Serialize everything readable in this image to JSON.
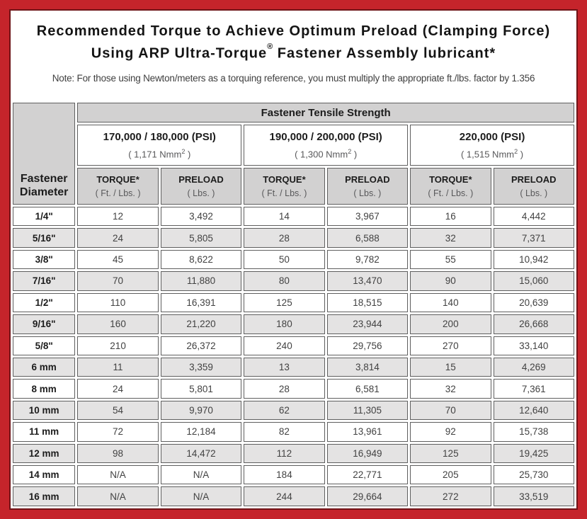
{
  "title": {
    "line1": "Recommended Torque to Achieve Optimum Preload (Clamping Force)",
    "line2_pre": "Using ARP Ultra-Torque",
    "line2_reg": "®",
    "line2_post": " Fastener Assembly lubricant*",
    "note": "Note: For those using Newton/meters as a torquing reference, you must multiply the appropriate ft./lbs. factor by 1.356"
  },
  "colors": {
    "frame_red": "#c5242b",
    "frame_inner_line": "#701418",
    "header_gray": "#d2d1d1",
    "alt_row_gray": "#e4e3e3",
    "cell_border": "#5f5f5f"
  },
  "table": {
    "corner_line1": "Fastener",
    "corner_line2": "Diameter",
    "top_header": "Fastener Tensile Strength",
    "groups": [
      {
        "psi": "170,000 / 180,000 (PSI)",
        "nmm_pre": "( 1,171 Nmm",
        "nmm_sup": "2",
        "nmm_post": " )"
      },
      {
        "psi": "190,000 / 200,000 (PSI)",
        "nmm_pre": "( 1,300 Nmm",
        "nmm_sup": "2",
        "nmm_post": " )"
      },
      {
        "psi": "220,000 (PSI)",
        "nmm_pre": "( 1,515 Nmm",
        "nmm_sup": "2",
        "nmm_post": " )"
      }
    ],
    "columns": [
      {
        "label": "TORQUE*",
        "unit": "( Ft. / Lbs. )"
      },
      {
        "label": "PRELOAD",
        "unit": "( Lbs. )"
      },
      {
        "label": "TORQUE*",
        "unit": "( Ft. / Lbs. )"
      },
      {
        "label": "PRELOAD",
        "unit": "( Lbs. )"
      },
      {
        "label": "TORQUE*",
        "unit": "( Ft. / Lbs. )"
      },
      {
        "label": "PRELOAD",
        "unit": "( Lbs. )"
      }
    ],
    "rows": [
      {
        "dia": "1/4\"",
        "values": [
          "12",
          "3,492",
          "14",
          "3,967",
          "16",
          "4,442"
        ]
      },
      {
        "dia": "5/16\"",
        "values": [
          "24",
          "5,805",
          "28",
          "6,588",
          "32",
          "7,371"
        ]
      },
      {
        "dia": "3/8\"",
        "values": [
          "45",
          "8,622",
          "50",
          "9,782",
          "55",
          "10,942"
        ]
      },
      {
        "dia": "7/16\"",
        "values": [
          "70",
          "11,880",
          "80",
          "13,470",
          "90",
          "15,060"
        ]
      },
      {
        "dia": "1/2\"",
        "values": [
          "110",
          "16,391",
          "125",
          "18,515",
          "140",
          "20,639"
        ]
      },
      {
        "dia": "9/16\"",
        "values": [
          "160",
          "21,220",
          "180",
          "23,944",
          "200",
          "26,668"
        ]
      },
      {
        "dia": "5/8\"",
        "values": [
          "210",
          "26,372",
          "240",
          "29,756",
          "270",
          "33,140"
        ]
      },
      {
        "dia": "6 mm",
        "values": [
          "11",
          "3,359",
          "13",
          "3,814",
          "15",
          "4,269"
        ]
      },
      {
        "dia": "8 mm",
        "values": [
          "24",
          "5,801",
          "28",
          "6,581",
          "32",
          "7,361"
        ]
      },
      {
        "dia": "10 mm",
        "values": [
          "54",
          "9,970",
          "62",
          "11,305",
          "70",
          "12,640"
        ]
      },
      {
        "dia": "11 mm",
        "values": [
          "72",
          "12,184",
          "82",
          "13,961",
          "92",
          "15,738"
        ]
      },
      {
        "dia": "12 mm",
        "values": [
          "98",
          "14,472",
          "112",
          "16,949",
          "125",
          "19,425"
        ]
      },
      {
        "dia": "14 mm",
        "values": [
          "N/A",
          "N/A",
          "184",
          "22,771",
          "205",
          "25,730"
        ]
      },
      {
        "dia": "16 mm",
        "values": [
          "N/A",
          "N/A",
          "244",
          "29,664",
          "272",
          "33,519"
        ]
      }
    ]
  }
}
